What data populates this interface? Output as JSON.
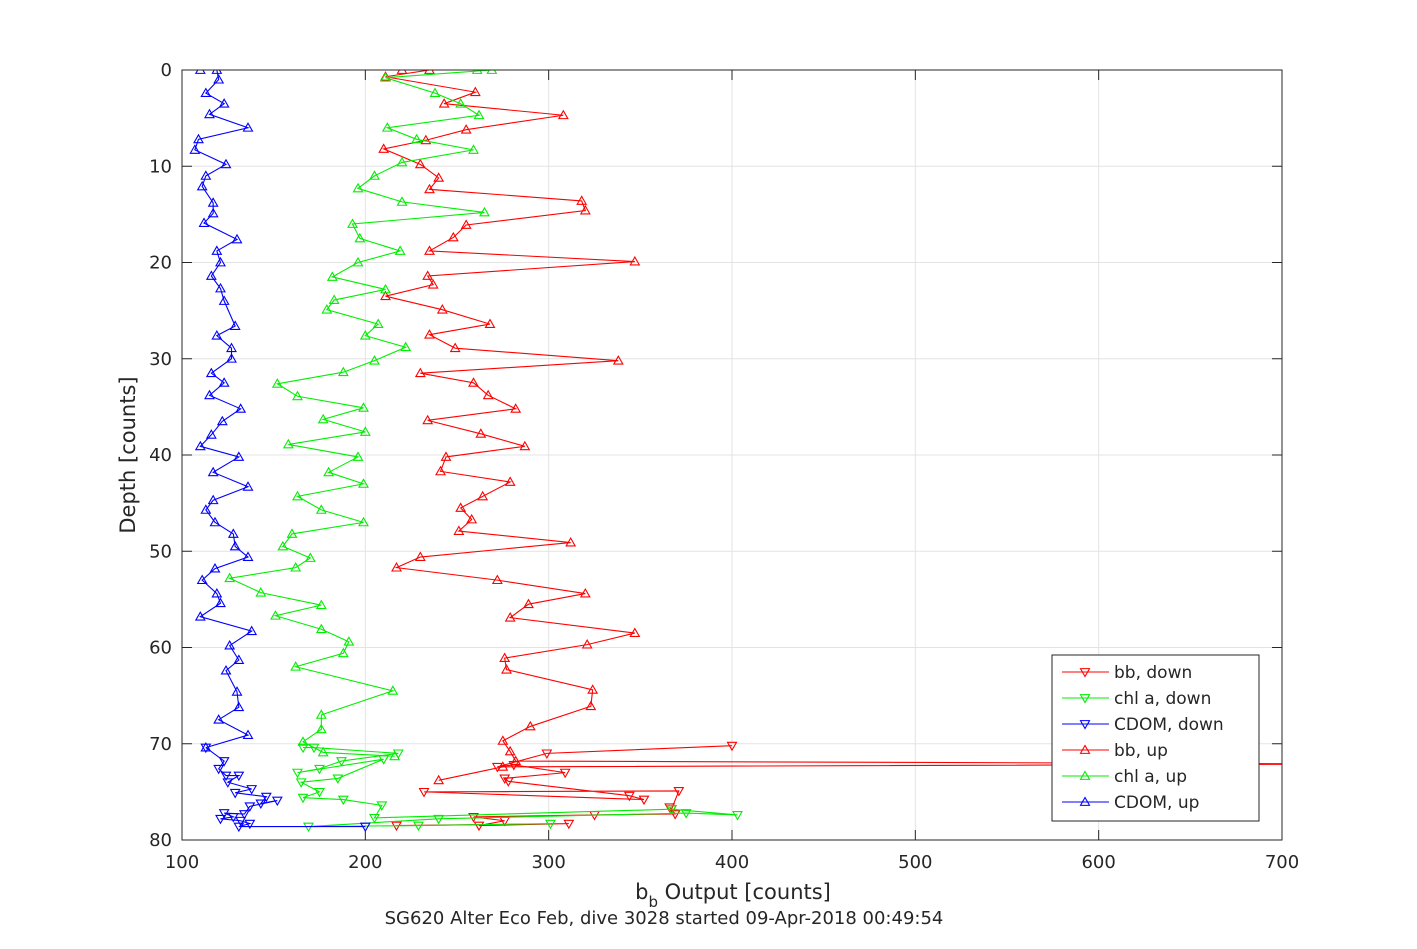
{
  "chart_data": {
    "type": "line",
    "xlabel": "b_b Output [counts]",
    "xlabel_main": "b",
    "xlabel_sub": "b",
    "xlabel_rest": " Output [counts]",
    "ylabel": "Depth [counts]",
    "caption": "SG620 Alter Eco Feb, dive 3028 started 09-Apr-2018 00:49:54",
    "xlim": [
      100,
      700
    ],
    "ylim": [
      0,
      80
    ],
    "y_reversed": true,
    "grid": true,
    "legend_position": "bottom-right",
    "x_ticks": [
      100,
      200,
      300,
      400,
      500,
      600,
      700
    ],
    "y_ticks": [
      0,
      10,
      20,
      30,
      40,
      50,
      60,
      70,
      80
    ],
    "series": [
      {
        "name": "bb, down",
        "color": "#ff0000",
        "marker": "triangle-down",
        "x": [
          400,
          299,
          272,
          281,
          309,
          276,
          278,
          344,
          352,
          232,
          371,
          367,
          366,
          369,
          325,
          259,
          276,
          262,
          311,
          217
        ],
        "y": [
          70.2,
          71.0,
          72.4,
          72.2,
          73.0,
          73.6,
          73.9,
          75.4,
          75.8,
          75.0,
          74.9,
          76.8,
          76.6,
          77.3,
          77.4,
          77.6,
          78.0,
          78.5,
          78.3,
          78.5
        ]
      },
      {
        "name": "chl a, down",
        "color": "#00ee00",
        "marker": "triangle-down",
        "x": [
          166,
          172,
          218,
          187,
          175,
          163,
          210,
          185,
          165,
          175,
          166,
          188,
          209,
          205,
          367,
          403,
          375,
          240,
          169,
          229,
          301
        ],
        "y": [
          70.4,
          70.4,
          71.0,
          71.8,
          72.6,
          73.0,
          71.6,
          73.6,
          74.0,
          75.0,
          75.6,
          75.8,
          76.4,
          77.7,
          76.8,
          77.4,
          77.2,
          77.8,
          78.6,
          78.5,
          78.3
        ]
      },
      {
        "name": "CDOM, down",
        "color": "#0000ff",
        "marker": "triangle-down",
        "x": [
          113,
          123,
          120,
          124,
          131,
          125,
          138,
          129,
          146,
          143,
          152,
          137,
          134,
          123,
          128,
          121,
          132,
          137,
          131,
          200
        ],
        "y": [
          70.4,
          71.8,
          72.6,
          73.3,
          73.3,
          74.0,
          74.7,
          75.1,
          75.5,
          76.2,
          75.9,
          76.5,
          77.3,
          77.2,
          77.6,
          77.8,
          78.0,
          78.3,
          78.6,
          78.6
        ]
      },
      {
        "name": "bb, up",
        "color": "#ff0000",
        "marker": "triangle-up",
        "x": [
          220,
          235,
          211,
          260,
          243,
          308,
          255,
          233,
          210,
          230,
          240,
          235,
          318,
          320,
          255,
          248,
          235,
          347,
          234,
          237,
          211,
          242,
          268,
          235,
          249,
          338,
          230,
          259,
          267,
          282,
          234,
          263,
          287,
          244,
          241,
          279,
          264,
          252,
          258,
          251,
          312,
          230,
          217,
          272,
          320,
          289,
          279,
          347,
          321,
          276,
          277,
          324,
          323,
          290,
          275,
          279,
          282,
          750,
          275,
          240
        ],
        "y": [
          0.0,
          0.0,
          0.7,
          2.3,
          3.5,
          4.7,
          6.2,
          7.3,
          8.2,
          9.8,
          11.2,
          12.4,
          13.6,
          14.6,
          16.1,
          17.4,
          18.8,
          19.9,
          21.4,
          22.3,
          23.5,
          24.9,
          26.4,
          27.5,
          28.9,
          30.2,
          31.5,
          32.5,
          33.8,
          35.2,
          36.4,
          37.8,
          39.1,
          40.2,
          41.7,
          42.8,
          44.3,
          45.5,
          46.7,
          47.9,
          49.1,
          50.6,
          51.7,
          53.0,
          54.4,
          55.5,
          56.9,
          58.5,
          59.7,
          61.1,
          62.3,
          64.4,
          66.1,
          68.2,
          69.7,
          70.8,
          71.8,
          72.1,
          72.4,
          73.8
        ]
      },
      {
        "name": "chl a, up",
        "color": "#00ee00",
        "marker": "triangle-up",
        "x": [
          261,
          269,
          211,
          238,
          252,
          262,
          212,
          228,
          259,
          220,
          205,
          196,
          220,
          265,
          193,
          197,
          219,
          196,
          182,
          211,
          183,
          179,
          207,
          200,
          222,
          205,
          188,
          152,
          163,
          199,
          177,
          200,
          158,
          196,
          180,
          199,
          163,
          176,
          199,
          160,
          155,
          170,
          162,
          126,
          143,
          176,
          151,
          176,
          191,
          188,
          162,
          215,
          176,
          176,
          166,
          177,
          216
        ],
        "y": [
          0.0,
          0.0,
          0.8,
          2.4,
          3.5,
          4.7,
          6.0,
          7.2,
          8.3,
          9.6,
          11.0,
          12.3,
          13.7,
          14.8,
          16.0,
          17.5,
          18.8,
          20.0,
          21.5,
          22.8,
          23.9,
          24.9,
          26.4,
          27.6,
          28.8,
          30.2,
          31.4,
          32.6,
          33.9,
          35.1,
          36.3,
          37.6,
          38.9,
          40.2,
          41.8,
          43.0,
          44.3,
          45.7,
          47.0,
          48.2,
          49.5,
          50.7,
          51.7,
          52.8,
          54.3,
          55.6,
          56.7,
          58.1,
          59.4,
          60.6,
          62.0,
          64.5,
          67.0,
          68.5,
          69.8,
          70.9,
          71.3
        ]
      },
      {
        "name": "CDOM, up",
        "color": "#0000ff",
        "marker": "triangle-up",
        "x": [
          110,
          119,
          120,
          113,
          123,
          115,
          136,
          109,
          107,
          124,
          113,
          111,
          117,
          117,
          112,
          130,
          119,
          121,
          116,
          121,
          123,
          129,
          119,
          127,
          127,
          116,
          123,
          115,
          132,
          122,
          116,
          110,
          131,
          117,
          136,
          117,
          113,
          118,
          128,
          129,
          136,
          118,
          111,
          119,
          121,
          110,
          138,
          126,
          131,
          124,
          130,
          131,
          120,
          136,
          113
        ],
        "y": [
          0.0,
          0.0,
          1.0,
          2.4,
          3.5,
          4.6,
          6.0,
          7.2,
          8.3,
          9.8,
          11.0,
          12.1,
          13.8,
          14.9,
          15.9,
          17.6,
          18.8,
          20.0,
          21.4,
          22.7,
          24.0,
          26.6,
          27.6,
          28.9,
          30.0,
          31.5,
          32.5,
          33.8,
          35.2,
          36.5,
          37.9,
          39.1,
          40.2,
          41.8,
          43.3,
          44.7,
          45.7,
          47.0,
          48.2,
          49.5,
          50.6,
          51.8,
          53.0,
          54.4,
          55.4,
          56.8,
          58.3,
          59.8,
          61.3,
          62.4,
          64.6,
          66.2,
          67.5,
          69.1,
          70.4
        ]
      }
    ]
  }
}
